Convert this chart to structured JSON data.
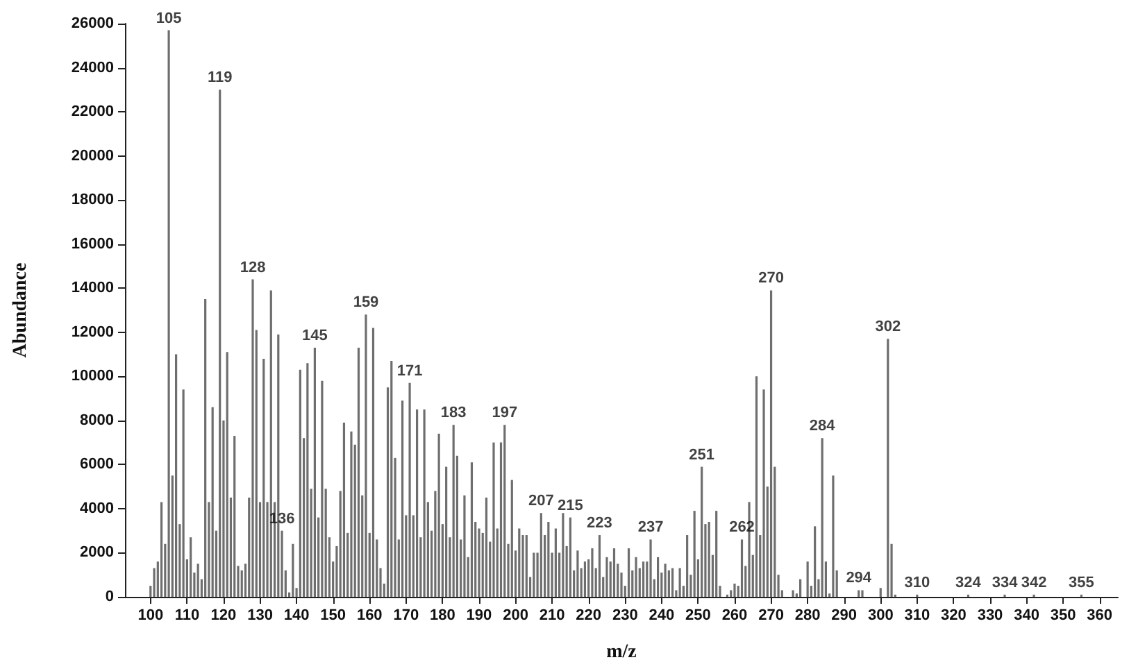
{
  "chart_data": {
    "type": "bar",
    "xlabel": "m/z",
    "ylabel": "Abundance",
    "color": "#6e6e6e",
    "x": [
      100,
      101,
      102,
      103,
      104,
      105,
      106,
      107,
      108,
      109,
      110,
      111,
      112,
      113,
      114,
      115,
      116,
      117,
      118,
      119,
      120,
      121,
      122,
      123,
      124,
      125,
      126,
      127,
      128,
      129,
      130,
      131,
      132,
      133,
      134,
      135,
      136,
      137,
      138,
      139,
      140,
      141,
      142,
      143,
      144,
      145,
      146,
      147,
      148,
      149,
      150,
      151,
      152,
      153,
      154,
      155,
      156,
      157,
      158,
      159,
      160,
      161,
      162,
      163,
      164,
      165,
      166,
      167,
      168,
      169,
      170,
      171,
      172,
      173,
      174,
      175,
      176,
      177,
      178,
      179,
      180,
      181,
      182,
      183,
      184,
      185,
      186,
      187,
      188,
      189,
      190,
      191,
      192,
      193,
      194,
      195,
      196,
      197,
      198,
      199,
      200,
      201,
      202,
      203,
      204,
      205,
      206,
      207,
      208,
      209,
      210,
      211,
      212,
      213,
      214,
      215,
      216,
      217,
      218,
      219,
      220,
      221,
      222,
      223,
      224,
      225,
      226,
      227,
      228,
      229,
      230,
      231,
      232,
      233,
      234,
      235,
      236,
      237,
      238,
      239,
      240,
      241,
      242,
      243,
      244,
      245,
      246,
      247,
      248,
      249,
      250,
      251,
      252,
      253,
      254,
      255,
      256,
      258,
      259,
      260,
      261,
      262,
      263,
      264,
      265,
      266,
      267,
      268,
      269,
      270,
      271,
      272,
      273,
      276,
      277,
      278,
      280,
      281,
      282,
      283,
      284,
      285,
      286,
      287,
      288,
      294,
      295,
      300,
      302,
      303,
      304,
      310,
      324,
      334,
      342,
      355
    ],
    "values": [
      500,
      1300,
      1600,
      4300,
      2400,
      25700,
      5500,
      11000,
      3300,
      9400,
      1700,
      2700,
      1100,
      1500,
      800,
      13500,
      4300,
      8600,
      3000,
      23000,
      8000,
      11100,
      4500,
      7300,
      1400,
      1200,
      1500,
      4500,
      14400,
      12100,
      4300,
      10800,
      4300,
      13900,
      4300,
      11900,
      3000,
      1200,
      200,
      2400,
      400,
      10300,
      7200,
      10600,
      4900,
      11300,
      3600,
      9800,
      4900,
      2700,
      1600,
      2300,
      4800,
      7900,
      2900,
      7500,
      6900,
      11300,
      4600,
      12800,
      2900,
      12200,
      2600,
      1300,
      600,
      9500,
      10700,
      6300,
      2600,
      8900,
      3700,
      9700,
      3700,
      8500,
      2700,
      8500,
      4300,
      3000,
      4800,
      7400,
      3300,
      5900,
      2700,
      7800,
      6400,
      2600,
      4600,
      1800,
      6100,
      3400,
      3100,
      2900,
      4500,
      2500,
      7000,
      3100,
      7000,
      7800,
      2400,
      5300,
      2100,
      3100,
      2800,
      2800,
      900,
      2000,
      2000,
      3800,
      2800,
      3400,
      2000,
      3100,
      2000,
      3800,
      2300,
      3600,
      1200,
      2100,
      1300,
      1600,
      1700,
      2200,
      1300,
      2800,
      900,
      1800,
      1600,
      2200,
      1500,
      1100,
      500,
      2200,
      1200,
      1800,
      1300,
      1600,
      1600,
      2600,
      800,
      1800,
      1100,
      1500,
      1200,
      1300,
      300,
      1300,
      500,
      2800,
      1000,
      3900,
      1700,
      5900,
      3300,
      3400,
      1900,
      3900,
      500,
      100,
      300,
      600,
      500,
      2600,
      1400,
      4300,
      1900,
      10000,
      2800,
      9400,
      5000,
      13900,
      5900,
      1000,
      300,
      300,
      150,
      800,
      1600,
      500,
      3200,
      800,
      7200,
      1600,
      150,
      5500,
      1200,
      300,
      300,
      400,
      11700,
      2400,
      100,
      100,
      100,
      100,
      100,
      100
    ],
    "xlim": [
      93,
      365
    ],
    "xticks": [
      100,
      110,
      120,
      130,
      140,
      150,
      160,
      170,
      180,
      190,
      200,
      210,
      220,
      230,
      240,
      250,
      260,
      270,
      280,
      290,
      300,
      310,
      320,
      330,
      340,
      350,
      360
    ],
    "ylim": [
      0,
      26000
    ],
    "yticks": [
      0,
      2000,
      4000,
      6000,
      8000,
      10000,
      12000,
      14000,
      16000,
      18000,
      20000,
      22000,
      24000,
      26000
    ],
    "grid": false,
    "annotations": [
      {
        "text": "105",
        "x": 105,
        "y": 25700
      },
      {
        "text": "119",
        "x": 119,
        "y": 23000
      },
      {
        "text": "128",
        "x": 128,
        "y": 14400
      },
      {
        "text": "136",
        "x": 136,
        "y": 3000
      },
      {
        "text": "145",
        "x": 145,
        "y": 11300
      },
      {
        "text": "159",
        "x": 159,
        "y": 12800
      },
      {
        "text": "171",
        "x": 171,
        "y": 9700
      },
      {
        "text": "183",
        "x": 183,
        "y": 7800
      },
      {
        "text": "197",
        "x": 197,
        "y": 7800
      },
      {
        "text": "207",
        "x": 207,
        "y": 3800
      },
      {
        "text": "215",
        "x": 215,
        "y": 3600
      },
      {
        "text": "223",
        "x": 223,
        "y": 2800
      },
      {
        "text": "237",
        "x": 237,
        "y": 2600
      },
      {
        "text": "251",
        "x": 251,
        "y": 5900
      },
      {
        "text": "262",
        "x": 262,
        "y": 2600
      },
      {
        "text": "270",
        "x": 270,
        "y": 13900
      },
      {
        "text": "284",
        "x": 284,
        "y": 7200
      },
      {
        "text": "294",
        "x": 294,
        "y": 300
      },
      {
        "text": "302",
        "x": 302,
        "y": 11700
      },
      {
        "text": "310",
        "x": 310,
        "y": 100
      },
      {
        "text": "324",
        "x": 324,
        "y": 100
      },
      {
        "text": "334",
        "x": 334,
        "y": 100
      },
      {
        "text": "342",
        "x": 342,
        "y": 100
      },
      {
        "text": "355",
        "x": 355,
        "y": 100
      }
    ]
  }
}
